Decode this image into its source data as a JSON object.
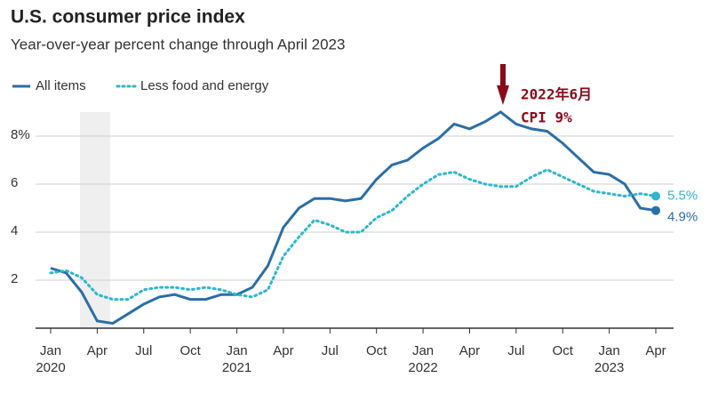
{
  "chart_data": {
    "type": "line",
    "title": "U.S. consumer price index",
    "subtitle": "Year-over-year percent change through April 2023",
    "categories": [
      "Jan",
      null,
      null,
      "Apr",
      null,
      null,
      "Jul",
      null,
      null,
      "Oct",
      null,
      null,
      "Jan",
      null,
      null,
      "Apr",
      null,
      null,
      "Jul",
      null,
      null,
      "Oct",
      null,
      null,
      "Jan",
      null,
      null,
      "Apr",
      null,
      null,
      "Jul",
      null,
      null,
      "Oct",
      null,
      null,
      "Jan",
      null,
      null,
      "Apr"
    ],
    "category_years": [
      "2020",
      null,
      null,
      null,
      null,
      null,
      null,
      null,
      null,
      null,
      null,
      null,
      "2021",
      null,
      null,
      null,
      null,
      null,
      null,
      null,
      null,
      null,
      null,
      null,
      "2022",
      null,
      null,
      null,
      null,
      null,
      null,
      null,
      null,
      null,
      null,
      null,
      "2023",
      null,
      null,
      null
    ],
    "series": [
      {
        "name": "All items",
        "color": "#2a6ea8",
        "style": "solid",
        "end_label": "4.9%",
        "values": [
          2.5,
          2.3,
          1.5,
          0.3,
          0.2,
          0.6,
          1.0,
          1.3,
          1.4,
          1.2,
          1.2,
          1.4,
          1.4,
          1.7,
          2.6,
          4.2,
          5.0,
          5.4,
          5.4,
          5.3,
          5.4,
          6.2,
          6.8,
          7.0,
          7.5,
          7.9,
          8.5,
          8.3,
          8.6,
          9.0,
          8.5,
          8.3,
          8.2,
          7.7,
          7.1,
          6.5,
          6.4,
          6.0,
          5.0,
          4.9
        ]
      },
      {
        "name": "Less food and energy",
        "color": "#2cb7cf",
        "style": "dotted",
        "end_label": "5.5%",
        "values": [
          2.3,
          2.4,
          2.1,
          1.4,
          1.2,
          1.2,
          1.6,
          1.7,
          1.7,
          1.6,
          1.7,
          1.6,
          1.4,
          1.3,
          1.6,
          3.0,
          3.8,
          4.5,
          4.3,
          4.0,
          4.0,
          4.6,
          4.9,
          5.5,
          6.0,
          6.4,
          6.5,
          6.2,
          6.0,
          5.9,
          5.9,
          6.3,
          6.6,
          6.3,
          6.0,
          5.7,
          5.6,
          5.5,
          5.6,
          5.5
        ]
      }
    ],
    "ylim": [
      0,
      9.5
    ],
    "yticks": [
      2,
      4,
      6,
      {
        "value": 8,
        "label": "8%"
      }
    ],
    "grid": true,
    "annotation": {
      "line1": "2022年6月",
      "line2": "CPI 9%",
      "color": "#8b0a1a"
    }
  }
}
